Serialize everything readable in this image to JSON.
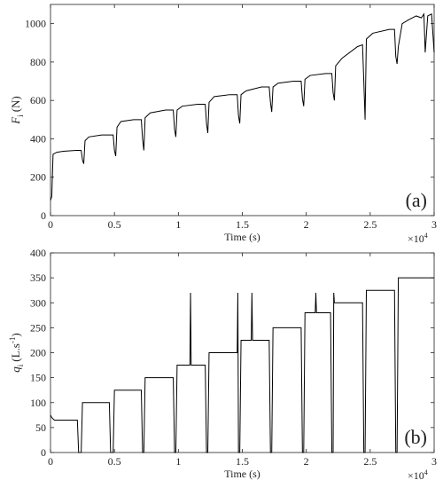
{
  "chart_data": [
    {
      "type": "line",
      "color": "#000000",
      "x_label": "Time (s)",
      "x_multiplier": {
        "base": "×10",
        "exponent": "4"
      },
      "y_label": [
        {
          "text": "F",
          "style": "italic"
        },
        {
          "text": "i",
          "style": "sub"
        },
        {
          "text": "(N)",
          "style": "normal"
        }
      ],
      "panel_label": "(a)",
      "xlim": [
        0,
        3
      ],
      "xticks": [
        0,
        0.5,
        1,
        1.5,
        2,
        2.5,
        3
      ],
      "ylim": [
        0,
        1100
      ],
      "yticks": [
        0,
        200,
        400,
        600,
        800,
        1000
      ],
      "x": [
        0,
        0.01,
        0.02,
        0.05,
        0.1,
        0.2,
        0.24,
        0.25,
        0.26,
        0.27,
        0.3,
        0.4,
        0.49,
        0.5,
        0.51,
        0.52,
        0.55,
        0.65,
        0.71,
        0.72,
        0.73,
        0.74,
        0.78,
        0.9,
        0.96,
        0.97,
        0.98,
        0.99,
        1.03,
        1.15,
        1.21,
        1.22,
        1.23,
        1.24,
        1.28,
        1.4,
        1.46,
        1.47,
        1.48,
        1.49,
        1.53,
        1.65,
        1.71,
        1.72,
        1.73,
        1.74,
        1.78,
        1.9,
        1.96,
        1.97,
        1.98,
        1.99,
        2.03,
        2.15,
        2.2,
        2.21,
        2.22,
        2.23,
        2.28,
        2.4,
        2.44,
        2.45,
        2.46,
        2.47,
        2.52,
        2.65,
        2.69,
        2.7,
        2.71,
        2.72,
        2.75,
        2.8,
        2.86,
        2.9,
        2.92,
        2.93,
        2.95,
        2.98,
        3
      ],
      "values": [
        80,
        100,
        320,
        330,
        335,
        340,
        340,
        290,
        270,
        390,
        410,
        420,
        420,
        340,
        310,
        460,
        490,
        500,
        500,
        400,
        340,
        510,
        535,
        550,
        550,
        450,
        410,
        550,
        570,
        580,
        580,
        480,
        430,
        590,
        620,
        630,
        630,
        520,
        480,
        630,
        650,
        670,
        670,
        590,
        540,
        670,
        690,
        700,
        700,
        610,
        570,
        710,
        730,
        740,
        740,
        640,
        600,
        780,
        820,
        880,
        890,
        700,
        500,
        920,
        950,
        970,
        970,
        830,
        790,
        880,
        1000,
        1020,
        1040,
        1030,
        1050,
        850,
        1040,
        1050,
        850
      ]
    },
    {
      "type": "line",
      "color": "#000000",
      "x_label": "Time (s)",
      "x_multiplier": {
        "base": "×10",
        "exponent": "4"
      },
      "y_label": [
        {
          "text": "q",
          "style": "italic"
        },
        {
          "text": "i",
          "style": "sub"
        },
        {
          "text": "(L.s",
          "style": "normal"
        },
        {
          "text": "-1",
          "style": "sup"
        },
        {
          "text": ")",
          "style": "normal"
        }
      ],
      "panel_label": "(b)",
      "xlim": [
        0,
        3
      ],
      "xticks": [
        0,
        0.5,
        1,
        1.5,
        2,
        2.5,
        3
      ],
      "ylim": [
        0,
        400
      ],
      "yticks": [
        0,
        50,
        100,
        150,
        200,
        250,
        300,
        350,
        400
      ],
      "x": [
        0,
        0.01,
        0.03,
        0.21,
        0.22,
        0.24,
        0.25,
        0.46,
        0.47,
        0.49,
        0.5,
        0.71,
        0.72,
        0.73,
        0.74,
        0.96,
        0.97,
        0.98,
        0.99,
        1.09,
        1.095,
        1.1,
        1.21,
        1.22,
        1.23,
        1.24,
        1.46,
        1.465,
        1.47,
        1.48,
        1.49,
        1.57,
        1.575,
        1.58,
        1.71,
        1.72,
        1.73,
        1.74,
        1.96,
        1.97,
        1.98,
        1.99,
        2.07,
        2.075,
        2.08,
        2.19,
        2.2,
        2.21,
        2.215,
        2.22,
        2.225,
        2.44,
        2.45,
        2.46,
        2.47,
        2.69,
        2.7,
        2.71,
        2.72,
        3
      ],
      "values": [
        75,
        70,
        65,
        65,
        0,
        0,
        100,
        100,
        0,
        0,
        125,
        125,
        0,
        0,
        150,
        150,
        0,
        0,
        175,
        175,
        320,
        175,
        175,
        0,
        0,
        200,
        200,
        320,
        0,
        0,
        225,
        225,
        320,
        225,
        225,
        0,
        0,
        250,
        250,
        0,
        0,
        280,
        280,
        320,
        280,
        280,
        0,
        0,
        320,
        300,
        300,
        300,
        0,
        0,
        325,
        325,
        0,
        0,
        350,
        350
      ]
    }
  ]
}
